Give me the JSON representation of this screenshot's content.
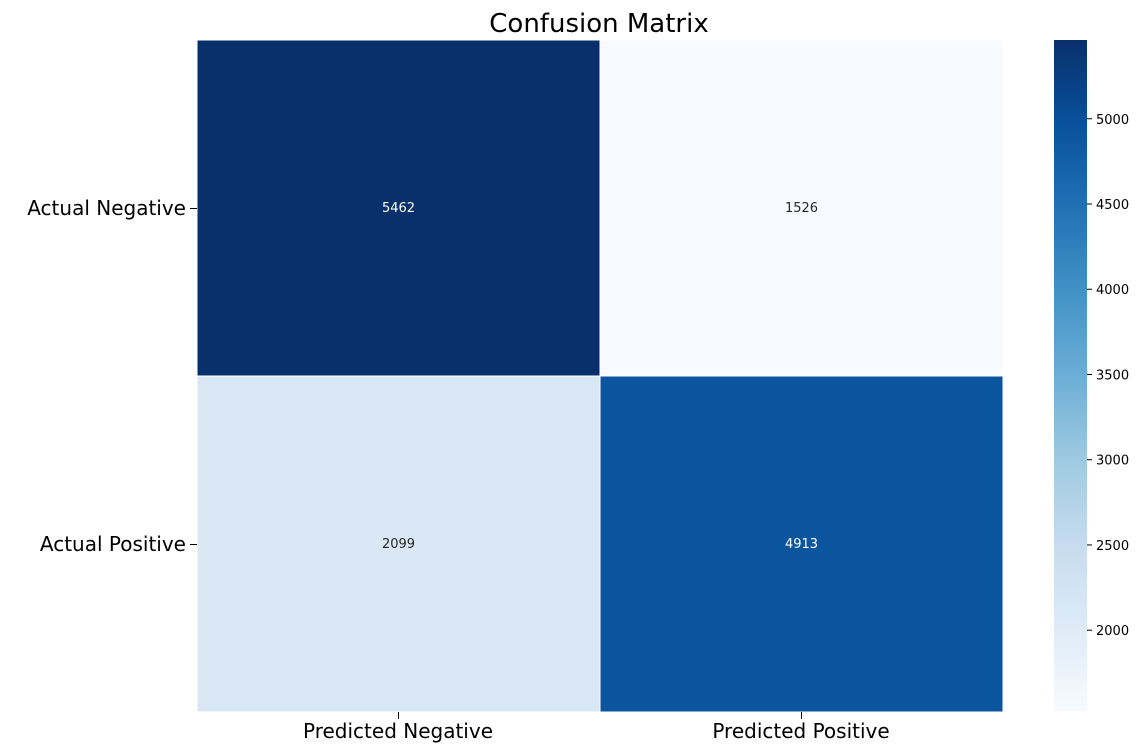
{
  "chart_data": {
    "type": "heatmap",
    "title": "Confusion Matrix",
    "row_labels": [
      "Actual Negative",
      "Actual Positive"
    ],
    "col_labels": [
      "Predicted Negative",
      "Predicted Positive"
    ],
    "values": [
      [
        5462,
        1526
      ],
      [
        2099,
        4913
      ]
    ],
    "colormap": "Blues",
    "color_range": [
      1526,
      5462
    ],
    "colorbar_ticks": [
      2000,
      2500,
      3000,
      3500,
      4000,
      4500,
      5000
    ],
    "colorbar_tick_labels": [
      "2000",
      "2500",
      "3000",
      "3500",
      "4000",
      "4500",
      "5000"
    ],
    "colorbar_position": "right",
    "grid": false
  }
}
